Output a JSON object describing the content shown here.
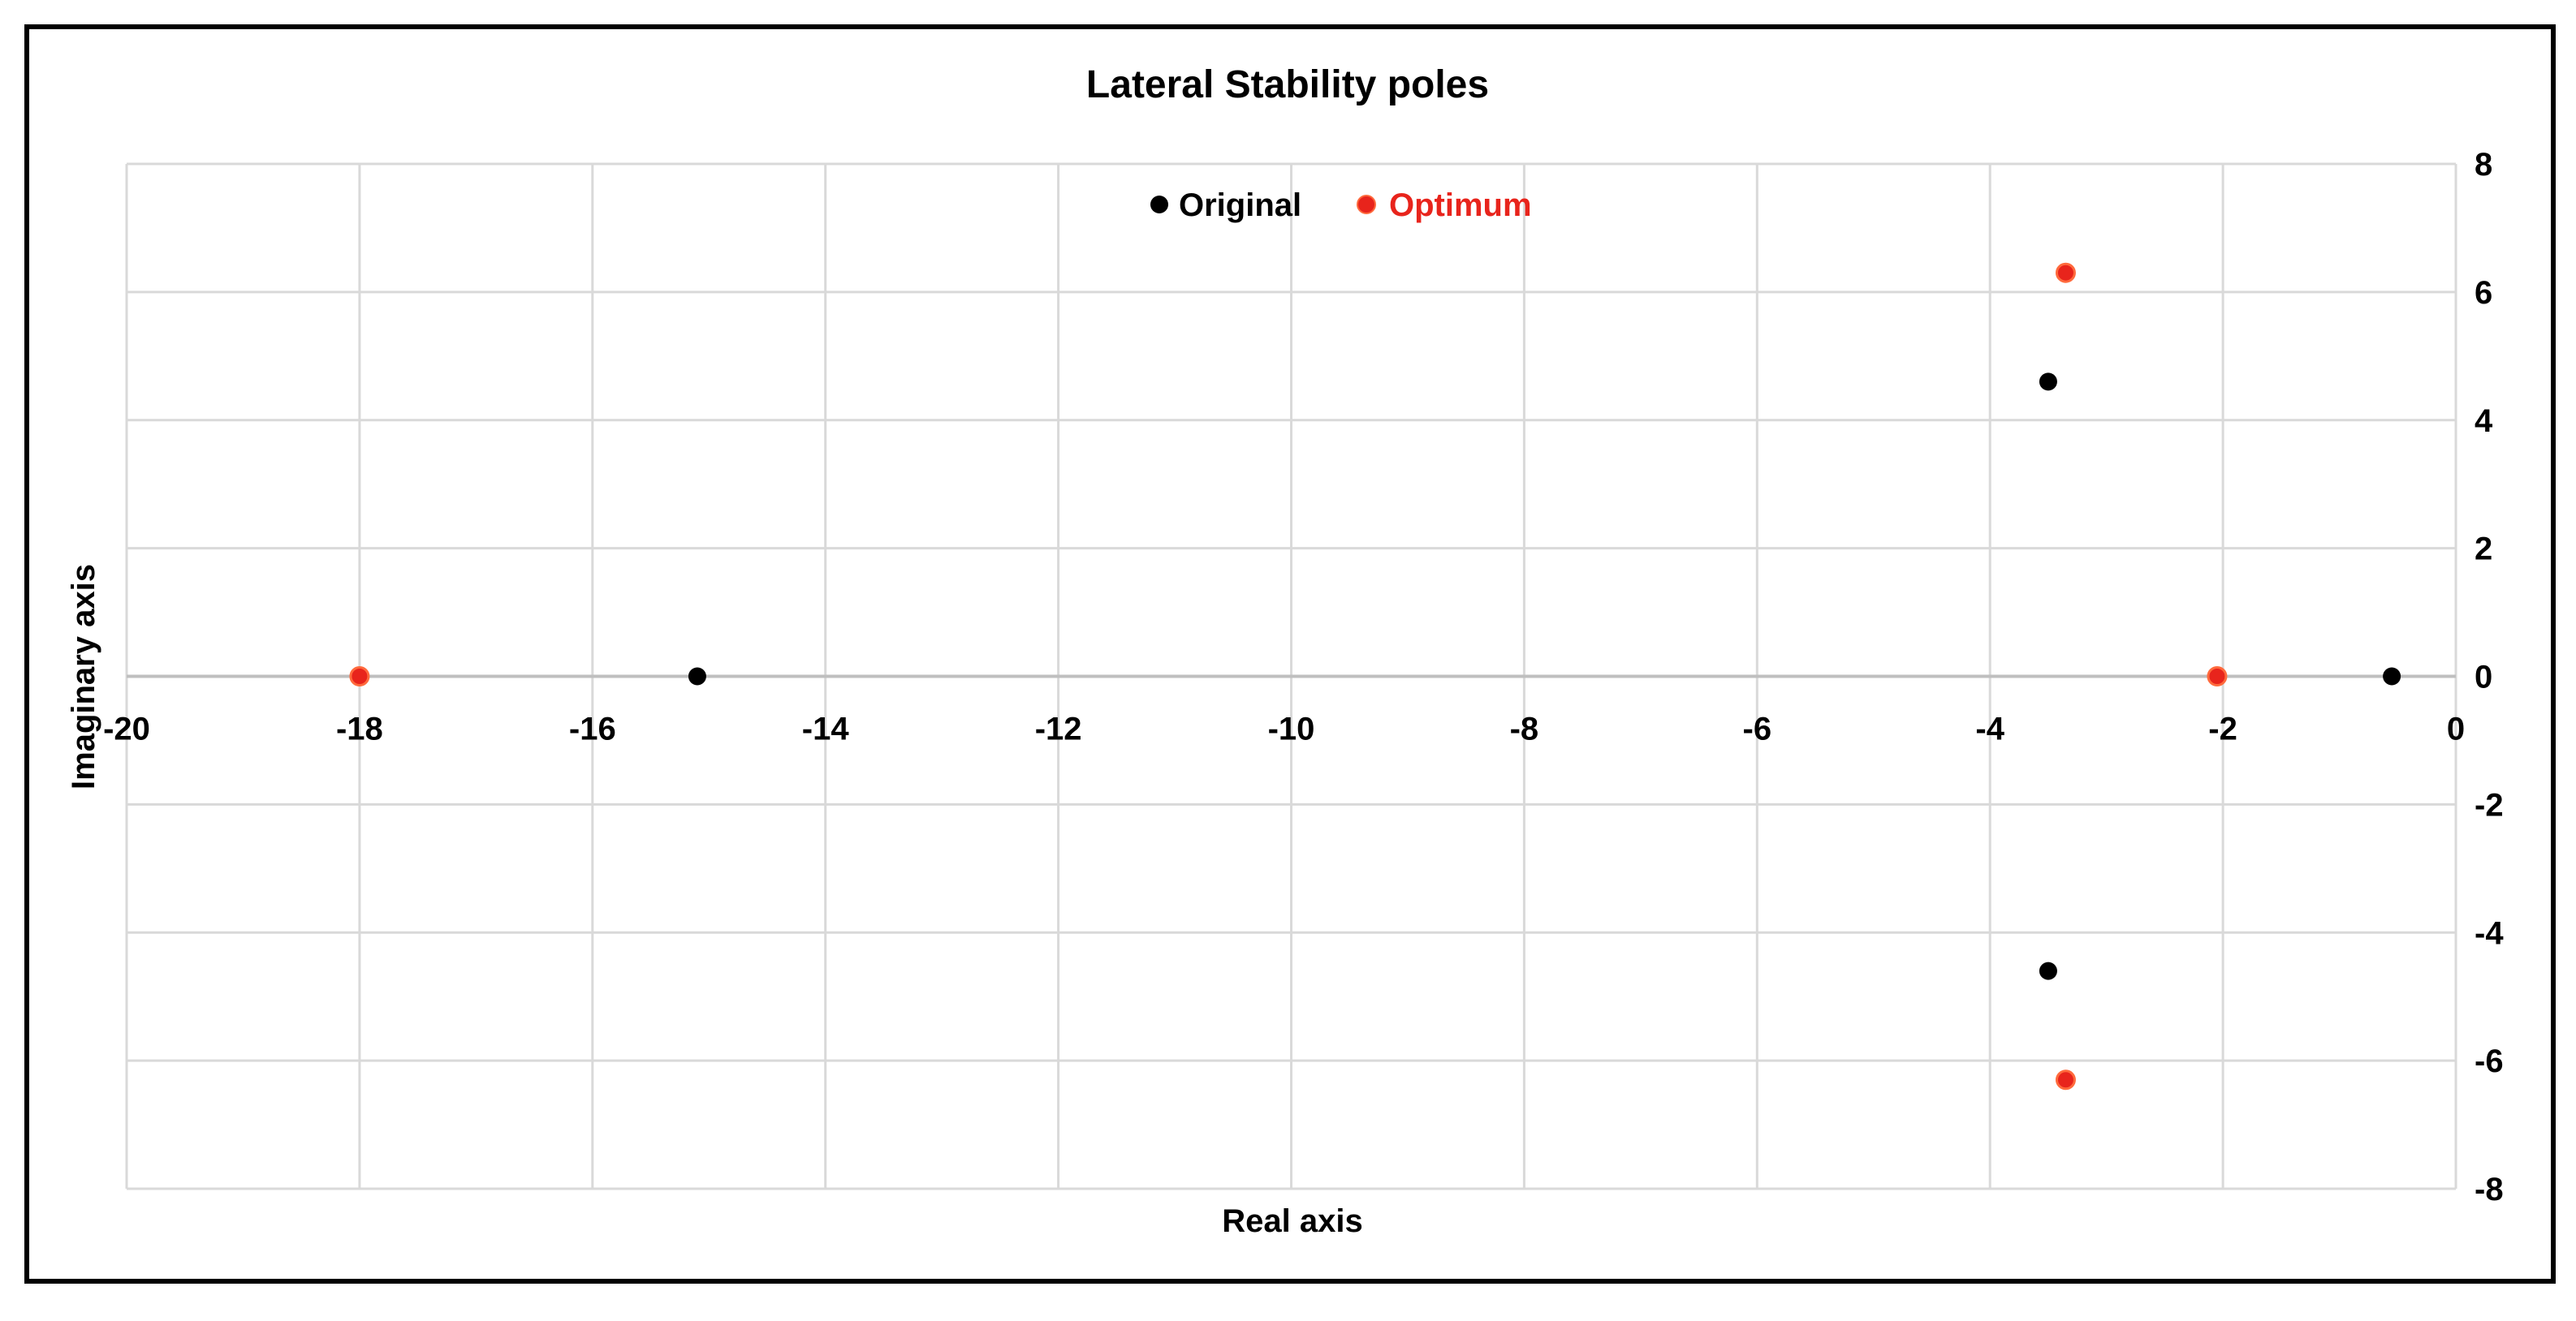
{
  "chart_data": {
    "type": "scatter",
    "title": "Lateral Stability poles",
    "xlabel": "Real axis",
    "ylabel": "Imaginary axis",
    "xlim": [
      -20,
      0
    ],
    "ylim": [
      -8,
      8
    ],
    "xticks": [
      -20,
      -18,
      -16,
      -14,
      -12,
      -10,
      -8,
      -6,
      -4,
      -2,
      0
    ],
    "yticks": [
      -8,
      -6,
      -4,
      -2,
      0,
      2,
      4,
      6,
      8
    ],
    "xtick_labels": [
      "-20",
      "-18",
      "-16",
      "-14",
      "-12",
      "-10",
      "-8",
      "-6",
      "-4",
      "-2",
      "0"
    ],
    "ytick_labels": [
      "-8",
      "-6",
      "-4",
      "-2",
      "0",
      "2",
      "4",
      "6",
      "8"
    ],
    "grid": true,
    "legend_position": "top-center",
    "series": [
      {
        "name": "Original",
        "color": "#000000",
        "points": [
          {
            "x": -15.1,
            "y": 0
          },
          {
            "x": -3.5,
            "y": 4.6
          },
          {
            "x": -3.5,
            "y": -4.6
          },
          {
            "x": -0.55,
            "y": 0
          }
        ]
      },
      {
        "name": "Optimum",
        "color": "#e8241c",
        "points": [
          {
            "x": -18.0,
            "y": 0
          },
          {
            "x": -3.35,
            "y": 6.3
          },
          {
            "x": -3.35,
            "y": -6.3
          },
          {
            "x": -2.05,
            "y": 0
          }
        ]
      }
    ]
  }
}
